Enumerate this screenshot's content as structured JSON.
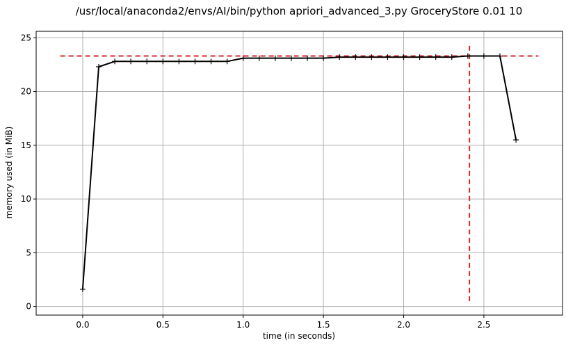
{
  "chart_data": {
    "type": "line",
    "title": "/usr/local/anaconda2/envs/AI/bin/python apriori_advanced_3.py GroceryStore 0.01 10",
    "xlabel": "time (in seconds)",
    "ylabel": "memory used (in MiB)",
    "xlim": [
      -0.29,
      2.99
    ],
    "ylim": [
      -0.8,
      25.6
    ],
    "x_ticks": [
      0.0,
      0.5,
      1.0,
      1.5,
      2.0,
      2.5
    ],
    "x_tick_labels": [
      "0.0",
      "0.5",
      "1.0",
      "1.5",
      "2.0",
      "2.5"
    ],
    "y_ticks": [
      0,
      5,
      10,
      15,
      20,
      25
    ],
    "y_tick_labels": [
      "0",
      "5",
      "10",
      "15",
      "20",
      "25"
    ],
    "grid": true,
    "series": [
      {
        "color": "#000000",
        "marker": "plus",
        "x": [
          0.0,
          0.1,
          0.2,
          0.3,
          0.4,
          0.5,
          0.6,
          0.7,
          0.8,
          0.9,
          1.0,
          1.1,
          1.2,
          1.3,
          1.4,
          1.5,
          1.6,
          1.7,
          1.8,
          1.9,
          2.0,
          2.1,
          2.2,
          2.3,
          2.4,
          2.5,
          2.6,
          2.7
        ],
        "y": [
          1.6,
          22.3,
          22.8,
          22.8,
          22.8,
          22.8,
          22.8,
          22.8,
          22.8,
          22.8,
          23.1,
          23.1,
          23.1,
          23.1,
          23.1,
          23.1,
          23.2,
          23.2,
          23.2,
          23.2,
          23.2,
          23.2,
          23.2,
          23.2,
          23.3,
          23.3,
          23.3,
          15.5
        ]
      }
    ],
    "reference_lines": [
      {
        "orientation": "horizontal",
        "y": 23.3,
        "x_from": -0.14,
        "x_to": 2.84,
        "color": "#d62728",
        "style": "dashed"
      },
      {
        "orientation": "vertical",
        "x": 2.41,
        "y_from": 0.5,
        "y_to": 24.3,
        "color": "#d62728",
        "style": "dashed"
      }
    ]
  }
}
